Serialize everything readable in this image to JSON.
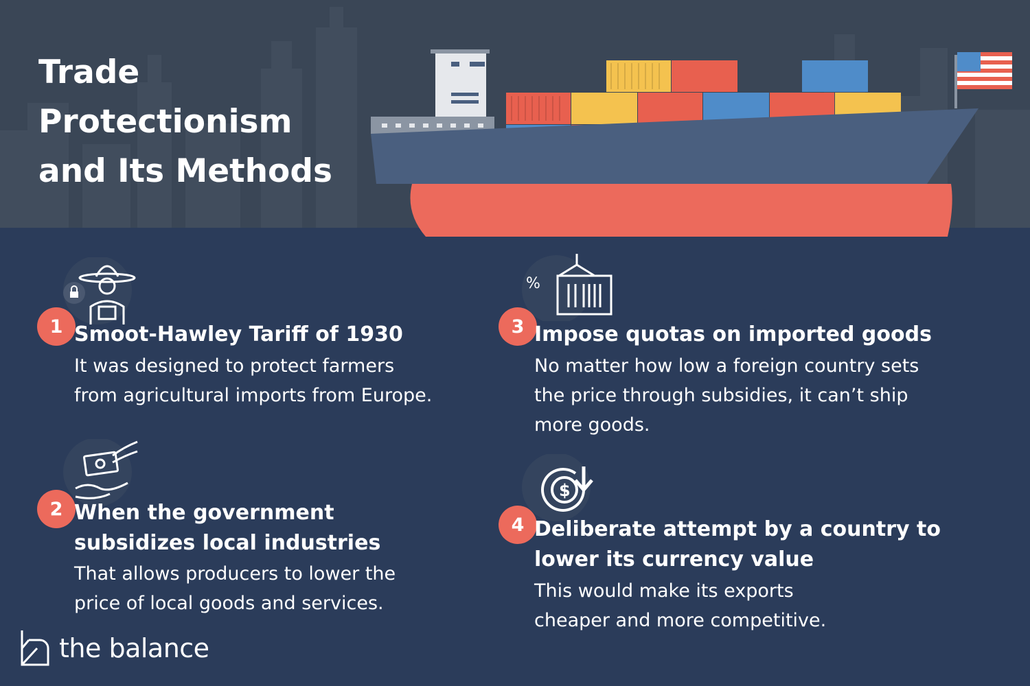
{
  "header": {
    "title_lines": [
      "Trade",
      "Protectionism",
      "and Its Methods"
    ]
  },
  "items": [
    {
      "number": "1",
      "title": "Smoot-Hawley Tariff of 1930",
      "body_lines": [
        "It was designed to protect farmers",
        "from agricultural imports from Europe."
      ],
      "icon": "farmer-icon"
    },
    {
      "number": "2",
      "title_lines": [
        "When the government",
        "subsidizes local industries"
      ],
      "body_lines": [
        "That allows producers to lower the",
        "price of local goods and services."
      ],
      "icon": "money-handoff-icon"
    },
    {
      "number": "3",
      "title": "Impose quotas on imported goods",
      "body_lines": [
        "No matter how low a foreign country sets",
        "the price through subsidies, it can’t ship",
        "more goods."
      ],
      "icon": "container-crane-icon"
    },
    {
      "number": "4",
      "title_lines": [
        "Deliberate attempt by a country to",
        "lower its currency value"
      ],
      "body_lines": [
        "This would make its exports",
        "cheaper and more competitive."
      ],
      "icon": "currency-down-icon"
    }
  ],
  "brand": {
    "name": "the balance"
  },
  "colors": {
    "top_background": "#3a4656",
    "bottom_background": "#2b3c5a",
    "accent_red": "#ec6a5c",
    "container_yellow": "#f4c24f",
    "container_blue": "#4f8cc9",
    "hull_blue": "#4a5f7f"
  }
}
